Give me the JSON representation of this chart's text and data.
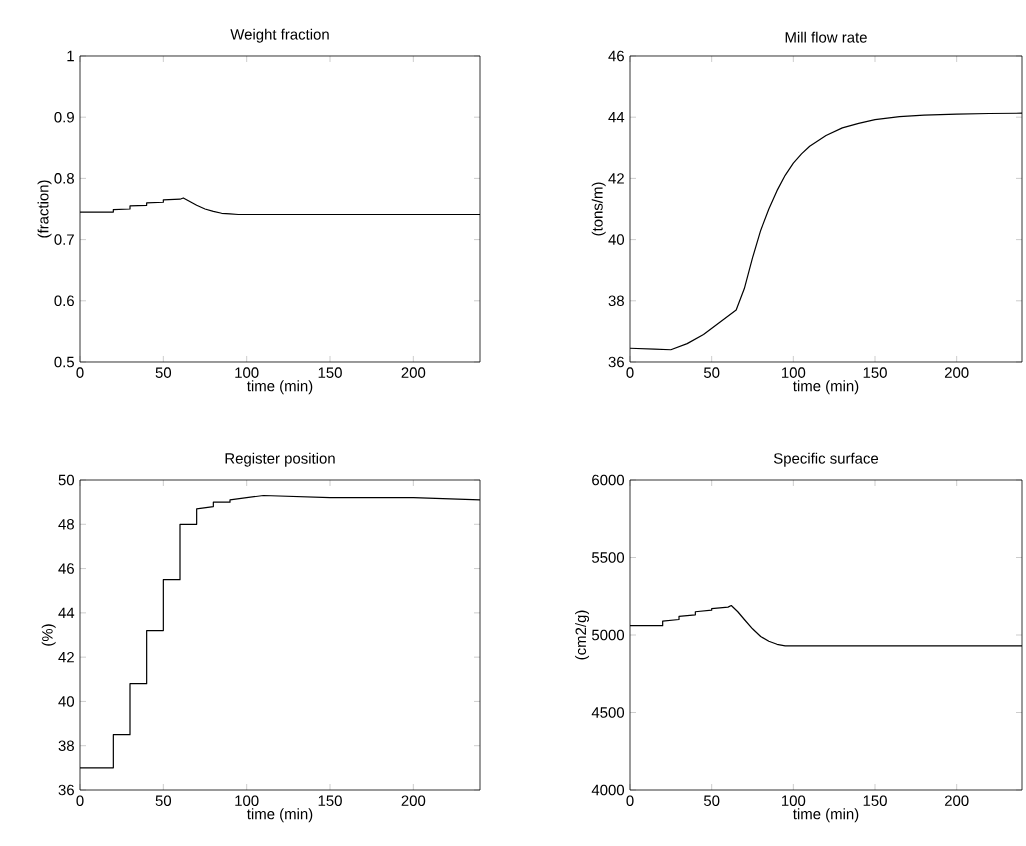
{
  "chart_data": [
    {
      "type": "line",
      "title": "Weight fraction",
      "xlabel": "time (min)",
      "ylabel": "(fraction)",
      "xlim": [
        0,
        240
      ],
      "xticks": [
        0,
        50,
        100,
        150,
        200
      ],
      "ylim": [
        0.5,
        1
      ],
      "yticks": [
        0.5,
        0.6,
        0.7,
        0.8,
        0.9,
        1
      ],
      "grid": false,
      "x": [
        0,
        20,
        20,
        30,
        30,
        40,
        40,
        50,
        50,
        60,
        62,
        66,
        70,
        75,
        80,
        85,
        90,
        95,
        100,
        120,
        150,
        200,
        240
      ],
      "series": [
        {
          "color": "#000000",
          "values": [
            0.745,
            0.745,
            0.749,
            0.75,
            0.755,
            0.756,
            0.76,
            0.761,
            0.765,
            0.766,
            0.768,
            0.762,
            0.756,
            0.75,
            0.746,
            0.743,
            0.742,
            0.741,
            0.741,
            0.741,
            0.741,
            0.741,
            0.741
          ]
        }
      ]
    },
    {
      "type": "line",
      "title": "Mill flow rate",
      "xlabel": "time (min)",
      "ylabel": "(tons/m)",
      "xlim": [
        0,
        240
      ],
      "xticks": [
        0,
        50,
        100,
        150,
        200
      ],
      "ylim": [
        36,
        46
      ],
      "yticks": [
        36,
        38,
        40,
        42,
        44,
        46
      ],
      "grid": false,
      "x": [
        0,
        15,
        25,
        35,
        45,
        55,
        65,
        70,
        75,
        80,
        85,
        90,
        95,
        100,
        105,
        110,
        120,
        130,
        140,
        150,
        165,
        180,
        200,
        220,
        240
      ],
      "series": [
        {
          "color": "#000000",
          "values": [
            36.45,
            36.42,
            36.4,
            36.6,
            36.9,
            37.3,
            37.7,
            38.4,
            39.4,
            40.3,
            41.0,
            41.6,
            42.1,
            42.5,
            42.8,
            43.05,
            43.4,
            43.65,
            43.8,
            43.92,
            44.02,
            44.07,
            44.1,
            44.12,
            44.13
          ]
        }
      ]
    },
    {
      "type": "line",
      "title": "Register position",
      "xlabel": "time (min)",
      "ylabel": "(%)",
      "xlim": [
        0,
        240
      ],
      "xticks": [
        0,
        50,
        100,
        150,
        200
      ],
      "ylim": [
        36,
        50
      ],
      "yticks": [
        36,
        38,
        40,
        42,
        44,
        46,
        48,
        50
      ],
      "grid": false,
      "x": [
        0,
        20,
        20,
        30,
        30,
        40,
        40,
        50,
        50,
        60,
        60,
        70,
        70,
        80,
        80,
        90,
        90,
        100,
        110,
        150,
        200,
        240
      ],
      "series": [
        {
          "color": "#000000",
          "values": [
            37.0,
            37.0,
            38.5,
            38.5,
            40.8,
            40.8,
            43.2,
            43.2,
            45.5,
            45.5,
            48.0,
            48.0,
            48.7,
            48.8,
            49.0,
            49.0,
            49.1,
            49.2,
            49.3,
            49.2,
            49.2,
            49.1
          ]
        }
      ]
    },
    {
      "type": "line",
      "title": "Specific surface",
      "xlabel": "time (min)",
      "ylabel": "(cm2/g)",
      "xlim": [
        0,
        240
      ],
      "xticks": [
        0,
        50,
        100,
        150,
        200
      ],
      "ylim": [
        4000,
        6000
      ],
      "yticks": [
        4000,
        4500,
        5000,
        5500,
        6000
      ],
      "grid": false,
      "x": [
        0,
        20,
        20,
        30,
        30,
        40,
        40,
        50,
        50,
        60,
        62,
        66,
        70,
        75,
        80,
        85,
        90,
        95,
        100,
        120,
        150,
        200,
        240
      ],
      "series": [
        {
          "color": "#000000",
          "values": [
            5060,
            5060,
            5090,
            5100,
            5120,
            5130,
            5150,
            5160,
            5170,
            5180,
            5190,
            5150,
            5100,
            5040,
            4990,
            4960,
            4940,
            4930,
            4930,
            4930,
            4930,
            4930,
            4930
          ]
        }
      ]
    }
  ]
}
